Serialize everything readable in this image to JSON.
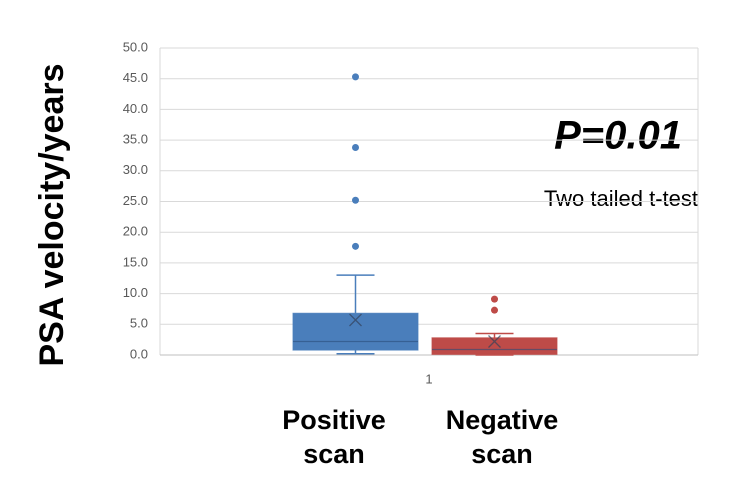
{
  "chart_data": {
    "type": "box",
    "ylabel": "PSA velocity/years",
    "categories": [
      "1"
    ],
    "ylim": [
      0,
      50
    ],
    "yticks": [
      {
        "value": 0,
        "label": "0.0"
      },
      {
        "value": 5,
        "label": "5.0"
      },
      {
        "value": 10,
        "label": "10.0"
      },
      {
        "value": 15,
        "label": "15.0"
      },
      {
        "value": 20,
        "label": "20.0"
      },
      {
        "value": 25,
        "label": "25.0"
      },
      {
        "value": 30,
        "label": "30.0"
      },
      {
        "value": 35,
        "label": "35.0"
      },
      {
        "value": 40,
        "label": "40.0"
      },
      {
        "value": 45,
        "label": "45.0"
      },
      {
        "value": 50,
        "label": "50.0"
      }
    ],
    "grid": true,
    "annotations": [
      "P=0.01",
      "Two tailed t-test"
    ],
    "series": [
      {
        "name": "Positive scan",
        "color": "#4a7ebb",
        "whisker_low": 0.2,
        "q1": 0.8,
        "median": 2.2,
        "q3": 6.8,
        "whisker_high": 13.0,
        "mean": 5.7,
        "outliers": [
          45.3,
          33.8,
          25.2,
          17.7
        ]
      },
      {
        "name": "Negative scan",
        "color": "#be4b48",
        "whisker_low": 0.0,
        "q1": 0.1,
        "median": 0.9,
        "q3": 2.8,
        "whisker_high": 3.5,
        "mean": 2.2,
        "outliers": [
          9.1,
          7.3
        ]
      }
    ]
  }
}
